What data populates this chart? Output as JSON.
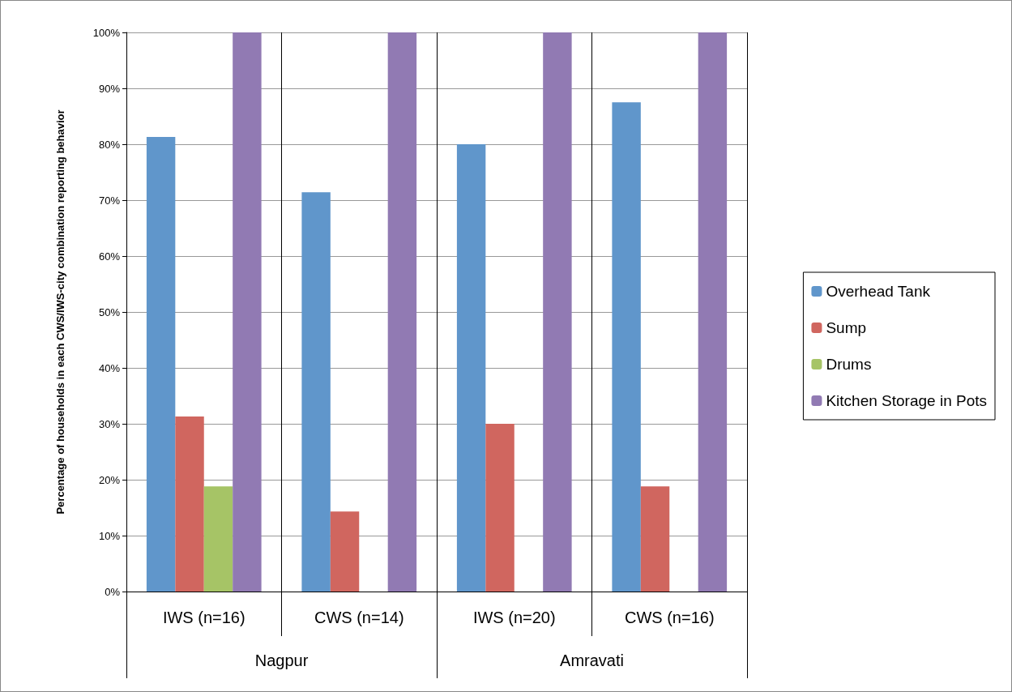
{
  "chart_data": {
    "type": "bar",
    "ylabel": "Percentage of households in each CWS/IWS-city combination reporting behavior",
    "categories": [
      "IWS (n=16)",
      "CWS (n=14)",
      "IWS (n=20)",
      "CWS (n=16)"
    ],
    "annotations": [
      "Nagpur",
      "Amravati"
    ],
    "series": [
      {
        "name": "Overhead Tank",
        "color": "#6096cb",
        "values": [
          81.3,
          71.4,
          80,
          87.5
        ]
      },
      {
        "name": "Sump",
        "color": "#d0665f",
        "values": [
          31.3,
          14.3,
          30,
          18.8
        ]
      },
      {
        "name": "Drums",
        "color": "#a6c466",
        "values": [
          18.8,
          0,
          0,
          0
        ]
      },
      {
        "name": "Kitchen Storage in Pots",
        "color": "#917ab3",
        "values": [
          100,
          100,
          100,
          100
        ]
      }
    ],
    "ylim": [
      0,
      100
    ],
    "yticks": [
      {
        "value": 0,
        "label": "0%"
      },
      {
        "value": 10,
        "label": "10%"
      },
      {
        "value": 20,
        "label": "20%"
      },
      {
        "value": 30,
        "label": "30%"
      },
      {
        "value": 40,
        "label": "40%"
      },
      {
        "value": 50,
        "label": "50%"
      },
      {
        "value": 60,
        "label": "60%"
      },
      {
        "value": 70,
        "label": "70%"
      },
      {
        "value": 80,
        "label": "80%"
      },
      {
        "value": 90,
        "label": "90%"
      },
      {
        "value": 100,
        "label": "100%"
      }
    ],
    "grid": "y",
    "legend": "right"
  }
}
